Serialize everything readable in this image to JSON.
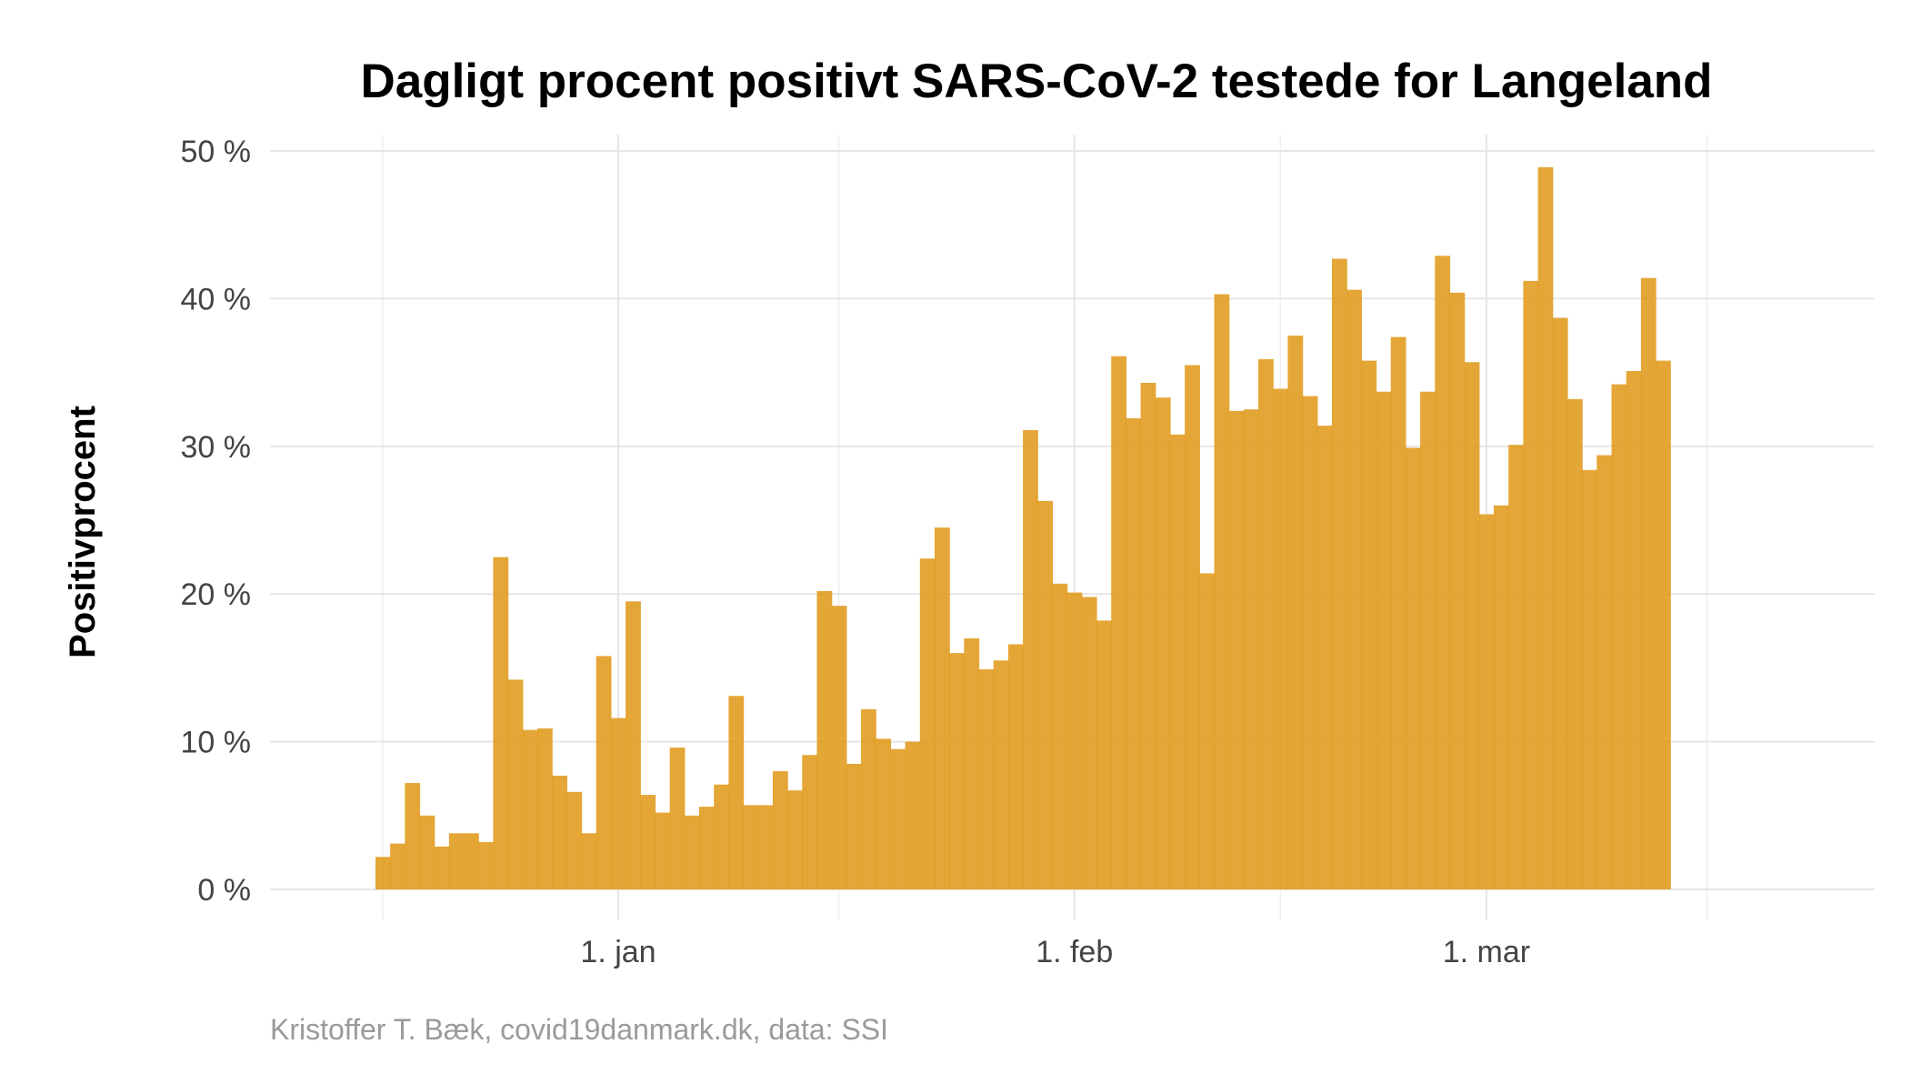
{
  "chart_data": {
    "type": "bar",
    "title": "Dagligt procent positivt SARS-CoV-2 testede for Langeland",
    "xlabel": "",
    "ylabel": "Positivprocent",
    "caption": "Kristoffer T. Bæk, covid19danmark.dk, data: SSI",
    "bar_color": "#E09A1A",
    "grid": true,
    "ylim": [
      0,
      50
    ],
    "y_ticks": [
      0,
      10,
      20,
      30,
      40,
      50
    ],
    "y_tick_labels": [
      "0 %",
      "10 %",
      "20 %",
      "30 %",
      "40 %",
      "50 %"
    ],
    "x_range": [
      "2020-12-21",
      "2021-03-20"
    ],
    "x_ticks": [
      "2021-01-01",
      "2021-02-01",
      "2021-03-01"
    ],
    "x_tick_labels": [
      "1. jan",
      "1. feb",
      "1. mar"
    ],
    "x_minor_ticks": [
      "2020-12-16",
      "2021-01-16",
      "2021-02-15",
      "2021-03-16"
    ],
    "start_date": "2020-12-16",
    "values": [
      2.2,
      3.1,
      7.2,
      5.0,
      2.9,
      3.8,
      3.8,
      3.2,
      22.5,
      14.2,
      10.8,
      10.9,
      7.7,
      6.6,
      3.8,
      15.8,
      11.6,
      19.5,
      6.4,
      5.2,
      9.6,
      5.0,
      5.6,
      7.1,
      13.1,
      5.7,
      5.7,
      8.0,
      6.7,
      9.1,
      20.2,
      19.2,
      8.5,
      12.2,
      10.2,
      9.5,
      10.0,
      22.4,
      24.5,
      16.0,
      17.0,
      14.9,
      15.5,
      16.6,
      31.1,
      26.3,
      20.7,
      20.1,
      19.8,
      18.2,
      36.1,
      31.9,
      34.3,
      33.3,
      30.8,
      35.5,
      21.4,
      40.3,
      32.4,
      32.5,
      35.9,
      33.9,
      37.5,
      33.4,
      31.4,
      42.7,
      40.6,
      35.8,
      33.7,
      37.4,
      29.9,
      33.7,
      42.9,
      40.4,
      35.7,
      25.4,
      26.0,
      30.1,
      41.2,
      48.9,
      38.7,
      33.2,
      28.4,
      29.4,
      34.2,
      35.1,
      41.4,
      35.8
    ]
  }
}
